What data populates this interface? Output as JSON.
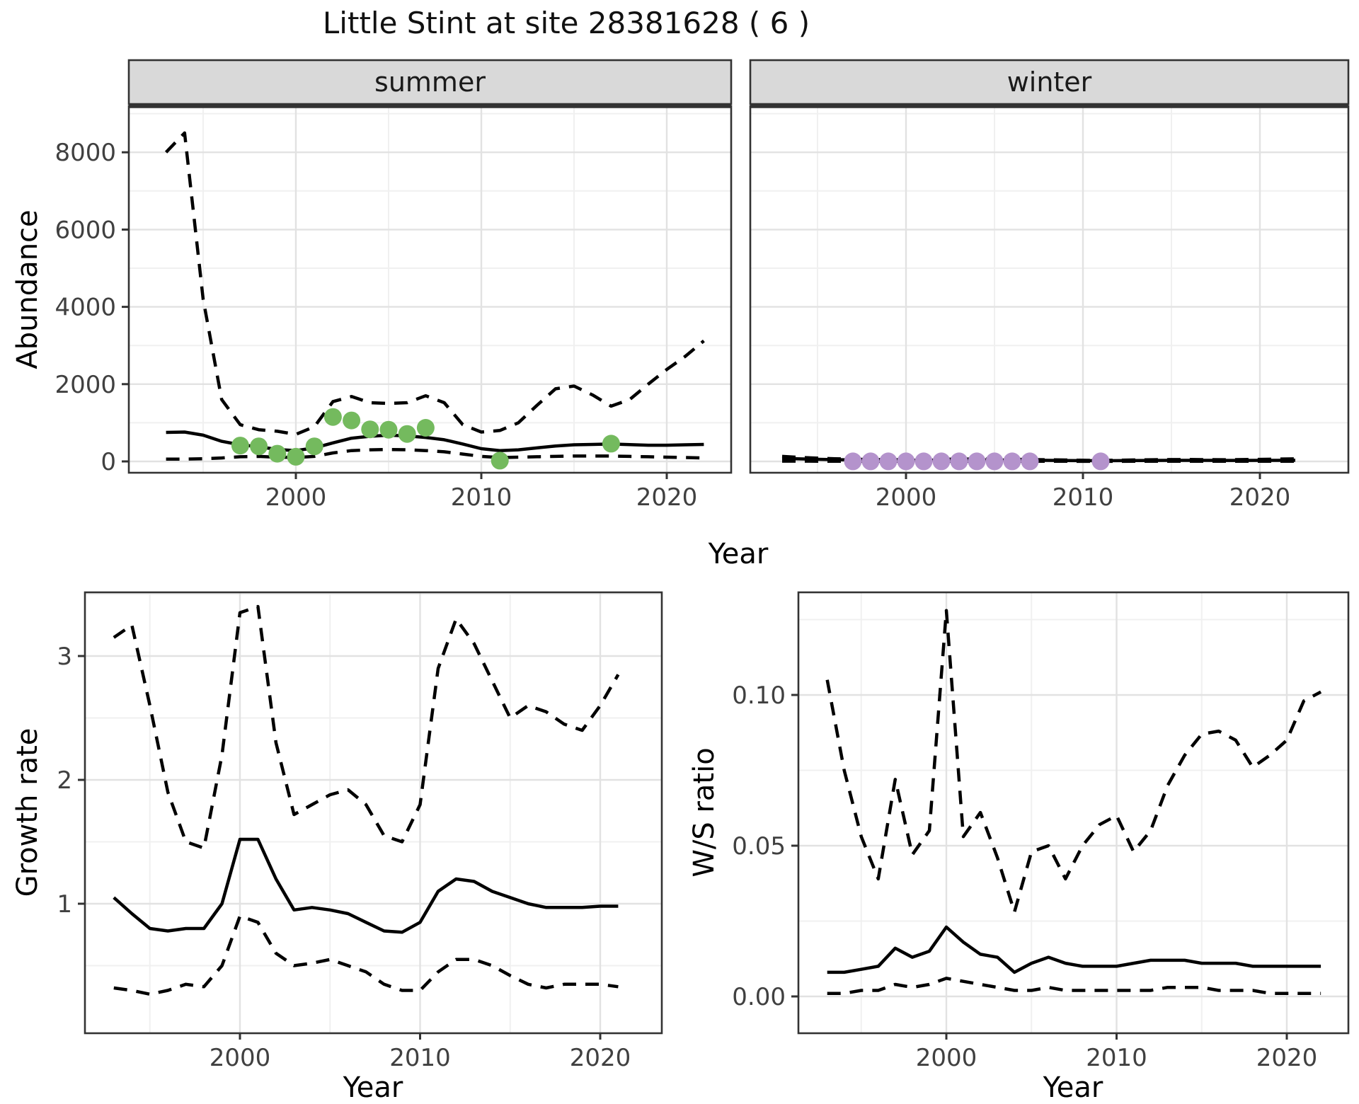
{
  "title": "Little Stint at site 28381628 ( 6 )",
  "facets": [
    "summer",
    "winter"
  ],
  "labels": {
    "y_top": "Abundance",
    "x_top": "Year",
    "y_bottom_left": "Growth rate",
    "x_bottom_left": "Year",
    "y_bottom_right": "W/S ratio",
    "x_bottom_right": "Year"
  },
  "colors": {
    "summer_point": "#74BA5E",
    "winter_point": "#B493CC",
    "line": "#000000",
    "grid_major": "#E2E2E2",
    "grid_minor": "#F0F0F0",
    "strip_bg": "#D9D9D9",
    "panel_border": "#333333",
    "tick_text": "#404040"
  },
  "chart_data": [
    {
      "id": "abundance_summer",
      "type": "line",
      "facet": "summer",
      "title": "summer",
      "xlabel": "Year",
      "ylabel": "Abundance",
      "xlim": [
        1991.5,
        2023.5
      ],
      "ylim": [
        -300,
        9200
      ],
      "grid": true,
      "x_ticks": {
        "values": [
          2000,
          2010,
          2020
        ],
        "labels": [
          "2000",
          "2010",
          "2020"
        ]
      },
      "y_ticks": {
        "values": [
          0,
          2000,
          4000,
          6000,
          8000
        ],
        "labels": [
          "0",
          "2000",
          "4000",
          "6000",
          "8000"
        ]
      },
      "x": [
        1993,
        1994,
        1995,
        1996,
        1997,
        1998,
        1999,
        2000,
        2001,
        2002,
        2003,
        2004,
        2005,
        2006,
        2007,
        2008,
        2009,
        2010,
        2011,
        2012,
        2013,
        2014,
        2015,
        2016,
        2017,
        2018,
        2019,
        2020,
        2021,
        2022
      ],
      "series": [
        {
          "name": "upper_95ci",
          "style": "dashed",
          "values": [
            8000,
            8500,
            4200,
            1600,
            950,
            820,
            780,
            700,
            900,
            1550,
            1680,
            1520,
            1500,
            1520,
            1700,
            1520,
            950,
            760,
            800,
            1000,
            1450,
            1880,
            1950,
            1720,
            1430,
            1600,
            2000,
            2380,
            2720,
            3120
          ]
        },
        {
          "name": "mean",
          "style": "solid",
          "values": [
            750,
            760,
            680,
            520,
            430,
            380,
            310,
            280,
            350,
            480,
            600,
            650,
            680,
            660,
            620,
            560,
            450,
            330,
            280,
            300,
            350,
            400,
            430,
            440,
            450,
            435,
            420,
            420,
            430,
            440
          ]
        },
        {
          "name": "lower_95ci",
          "style": "dashed",
          "values": [
            60,
            60,
            70,
            90,
            120,
            130,
            110,
            100,
            130,
            220,
            280,
            300,
            310,
            300,
            280,
            250,
            190,
            130,
            100,
            110,
            120,
            130,
            140,
            140,
            140,
            130,
            120,
            110,
            100,
            90
          ]
        }
      ],
      "points": {
        "name": "observed_counts",
        "color": "#74BA5E",
        "data": [
          [
            1997,
            410
          ],
          [
            1998,
            390
          ],
          [
            1999,
            200
          ],
          [
            2000,
            120
          ],
          [
            2001,
            390
          ],
          [
            2002,
            1150
          ],
          [
            2003,
            1060
          ],
          [
            2004,
            830
          ],
          [
            2005,
            820
          ],
          [
            2006,
            710
          ],
          [
            2007,
            870
          ],
          [
            2011,
            20
          ],
          [
            2017,
            460
          ]
        ]
      }
    },
    {
      "id": "abundance_winter",
      "type": "line",
      "facet": "winter",
      "title": "winter",
      "xlabel": "Year",
      "ylabel": "Abundance",
      "xlim": [
        1991.5,
        2023.5
      ],
      "ylim": [
        -300,
        9200
      ],
      "grid": true,
      "x_ticks": {
        "values": [
          2000,
          2010,
          2020
        ],
        "labels": [
          "2000",
          "2010",
          "2020"
        ]
      },
      "y_ticks": {
        "values": [
          0,
          2000,
          4000,
          6000,
          8000
        ],
        "labels": [
          "0",
          "2000",
          "4000",
          "6000",
          "8000"
        ]
      },
      "x": [
        1993,
        1994,
        1995,
        1996,
        1997,
        1998,
        1999,
        2000,
        2001,
        2002,
        2003,
        2004,
        2005,
        2006,
        2007,
        2008,
        2009,
        2010,
        2011,
        2012,
        2013,
        2014,
        2015,
        2016,
        2017,
        2018,
        2019,
        2020,
        2021,
        2022
      ],
      "series": [
        {
          "name": "upper_95ci",
          "style": "dashed",
          "values": [
            130,
            105,
            85,
            70,
            58,
            50,
            45,
            42,
            46,
            55,
            62,
            62,
            60,
            55,
            50,
            42,
            36,
            30,
            28,
            32,
            38,
            44,
            48,
            50,
            46,
            44,
            48,
            54,
            60,
            66
          ]
        },
        {
          "name": "mean",
          "style": "solid",
          "values": [
            78,
            66,
            55,
            46,
            38,
            33,
            29,
            27,
            30,
            35,
            38,
            38,
            37,
            34,
            31,
            27,
            24,
            21,
            19,
            21,
            24,
            26,
            28,
            28,
            27,
            26,
            26,
            27,
            28,
            30
          ]
        },
        {
          "name": "lower_95ci",
          "style": "dashed",
          "values": [
            8,
            7,
            6,
            5,
            4,
            4,
            3,
            3,
            3,
            4,
            5,
            5,
            5,
            4,
            4,
            3,
            3,
            2,
            2,
            2,
            3,
            3,
            3,
            3,
            3,
            3,
            3,
            3,
            3,
            3
          ]
        }
      ],
      "points": {
        "name": "observed_counts",
        "color": "#B493CC",
        "data": [
          [
            1997,
            2
          ],
          [
            1998,
            2
          ],
          [
            1999,
            2
          ],
          [
            2000,
            2
          ],
          [
            2001,
            2
          ],
          [
            2002,
            2
          ],
          [
            2003,
            2
          ],
          [
            2004,
            2
          ],
          [
            2005,
            2
          ],
          [
            2006,
            2
          ],
          [
            2007,
            2
          ],
          [
            2011,
            2
          ]
        ]
      }
    },
    {
      "id": "growth_rate",
      "type": "line",
      "facet": null,
      "title": "Growth rate",
      "xlabel": "Year",
      "ylabel": "Growth rate",
      "xlim": [
        1991.4,
        2023.4
      ],
      "ylim": [
        0.1,
        3.55
      ],
      "grid": true,
      "x_ticks": {
        "values": [
          2000,
          2010,
          2020
        ],
        "labels": [
          "2000",
          "2010",
          "2020"
        ]
      },
      "y_ticks": {
        "values": [
          1,
          2,
          3
        ],
        "labels": [
          "1",
          "2",
          "3"
        ]
      },
      "x": [
        1993,
        1994,
        1995,
        1996,
        1997,
        1998,
        1999,
        2000,
        2001,
        2002,
        2003,
        2004,
        2005,
        2006,
        2007,
        2008,
        2009,
        2010,
        2011,
        2012,
        2013,
        2014,
        2015,
        2016,
        2017,
        2018,
        2019,
        2020,
        2021
      ],
      "series": [
        {
          "name": "upper_95ci",
          "style": "dashed",
          "values": [
            3.15,
            3.25,
            2.6,
            1.9,
            1.5,
            1.45,
            2.2,
            3.35,
            3.4,
            2.3,
            1.72,
            1.8,
            1.88,
            1.92,
            1.8,
            1.55,
            1.5,
            1.8,
            2.9,
            3.3,
            3.1,
            2.8,
            2.5,
            2.6,
            2.55,
            2.45,
            2.4,
            2.6,
            2.85
          ]
        },
        {
          "name": "mean",
          "style": "solid",
          "values": [
            1.05,
            0.92,
            0.8,
            0.78,
            0.8,
            0.8,
            1.0,
            1.52,
            1.52,
            1.2,
            0.95,
            0.97,
            0.95,
            0.92,
            0.85,
            0.78,
            0.77,
            0.85,
            1.1,
            1.2,
            1.18,
            1.1,
            1.05,
            1.0,
            0.97,
            0.97,
            0.97,
            0.98,
            0.98
          ]
        },
        {
          "name": "lower_95ci",
          "style": "dashed",
          "values": [
            0.32,
            0.3,
            0.27,
            0.3,
            0.35,
            0.33,
            0.5,
            0.9,
            0.85,
            0.6,
            0.5,
            0.52,
            0.55,
            0.5,
            0.45,
            0.35,
            0.3,
            0.3,
            0.45,
            0.55,
            0.55,
            0.5,
            0.42,
            0.35,
            0.32,
            0.35,
            0.35,
            0.35,
            0.33
          ]
        }
      ],
      "points": null
    },
    {
      "id": "ws_ratio",
      "type": "line",
      "facet": null,
      "title": "W/S ratio",
      "xlabel": "Year",
      "ylabel": "W/S ratio",
      "xlim": [
        1991.3,
        2023.7
      ],
      "ylim": [
        -0.012,
        0.134
      ],
      "grid": true,
      "x_ticks": {
        "values": [
          2000,
          2010,
          2020
        ],
        "labels": [
          "2000",
          "2010",
          "2020"
        ]
      },
      "y_ticks": {
        "values": [
          0.0,
          0.05,
          0.1
        ],
        "labels": [
          "0.00",
          "0.05",
          "0.10"
        ]
      },
      "x": [
        1993,
        1994,
        1995,
        1996,
        1997,
        1998,
        1999,
        2000,
        2001,
        2002,
        2003,
        2004,
        2005,
        2006,
        2007,
        2008,
        2009,
        2010,
        2011,
        2012,
        2013,
        2014,
        2015,
        2016,
        2017,
        2018,
        2019,
        2020,
        2021,
        2022
      ],
      "series": [
        {
          "name": "upper_95ci",
          "style": "dashed",
          "values": [
            0.105,
            0.075,
            0.053,
            0.039,
            0.072,
            0.047,
            0.055,
            0.128,
            0.053,
            0.061,
            0.046,
            0.028,
            0.048,
            0.05,
            0.039,
            0.05,
            0.057,
            0.06,
            0.048,
            0.055,
            0.07,
            0.08,
            0.087,
            0.088,
            0.085,
            0.076,
            0.08,
            0.085,
            0.098,
            0.101
          ]
        },
        {
          "name": "mean",
          "style": "solid",
          "values": [
            0.008,
            0.008,
            0.009,
            0.01,
            0.016,
            0.013,
            0.015,
            0.023,
            0.018,
            0.014,
            0.013,
            0.008,
            0.011,
            0.013,
            0.011,
            0.01,
            0.01,
            0.01,
            0.011,
            0.012,
            0.012,
            0.012,
            0.011,
            0.011,
            0.011,
            0.01,
            0.01,
            0.01,
            0.01,
            0.01
          ]
        },
        {
          "name": "lower_95ci",
          "style": "dashed",
          "values": [
            0.001,
            0.001,
            0.002,
            0.002,
            0.004,
            0.003,
            0.004,
            0.006,
            0.005,
            0.004,
            0.003,
            0.002,
            0.002,
            0.003,
            0.002,
            0.002,
            0.002,
            0.002,
            0.002,
            0.002,
            0.003,
            0.003,
            0.003,
            0.002,
            0.002,
            0.002,
            0.001,
            0.001,
            0.001,
            0.001
          ]
        }
      ],
      "points": null
    }
  ]
}
